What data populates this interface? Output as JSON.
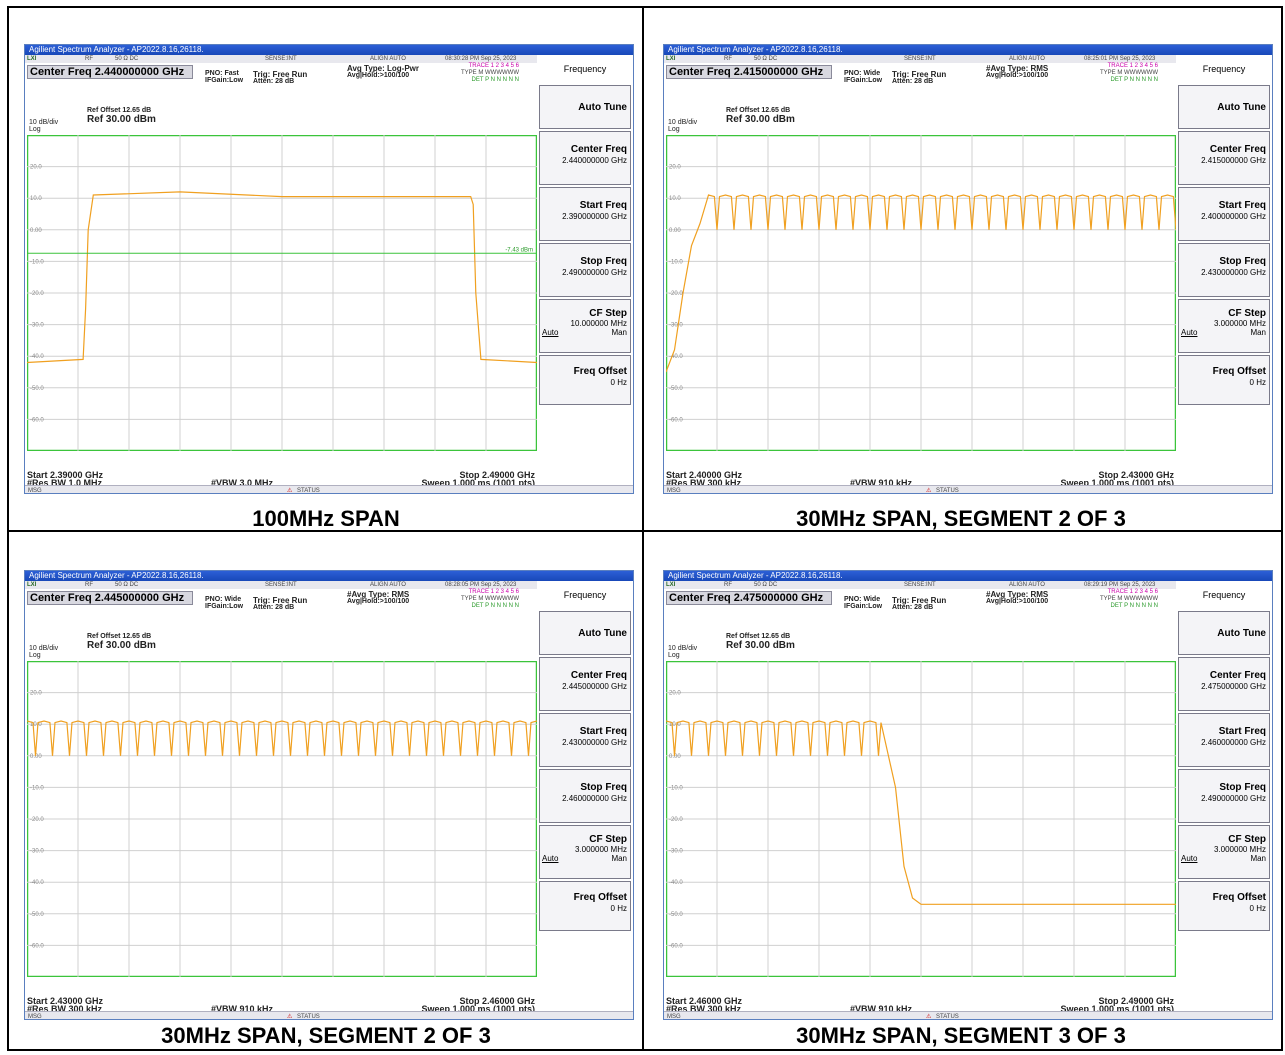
{
  "window_title": "Agilient Spectrum Analyzer - AP2022.8.16,26118.",
  "status_row": {
    "rf": "RF",
    "imp": "50 Ω  DC",
    "sense": "SENSE:INT",
    "align": "ALIGN AUTO"
  },
  "common": {
    "ref_offset": "Ref Offset 12.65 dB",
    "ref_level": "Ref 30.00 dBm",
    "scale": "10 dB/div",
    "log": "Log",
    "trig": "Trig: Free Run",
    "atten": "Atten: 28 dB",
    "ifgain": "IFGain:Low",
    "softkey_header": "Frequency",
    "auto_tune": "Auto Tune",
    "center_freq_label": "Center Freq",
    "start_freq_label": "Start Freq",
    "stop_freq_label": "Stop Freq",
    "cf_step_label": "CF Step",
    "auto": "Auto",
    "man": "Man",
    "freq_offset_label": "Freq Offset",
    "freq_offset_value": "0 Hz",
    "msg": "MSG",
    "status": "STATUS",
    "trace_row": "TRACE 1 2 3 4 5 6",
    "y_ticks": [
      "20.0",
      "10.0",
      "0.00",
      "-10.0",
      "-20.0",
      "-30.0",
      "-40.0",
      "-50.0",
      "-60.0"
    ]
  },
  "panels": [
    {
      "caption": "100MHz SPAN",
      "timestamp": "08:30:28 PM Sep 25, 2023",
      "center": "Center Freq 2.440000000 GHz",
      "pno": "PNO: Fast",
      "avg_type": "Avg Type: Log-Pwr",
      "avg_hold": "Avg|Hold:>100/100",
      "type_row": "TYPE M WWWWWW",
      "det_row": "DET P N N N N N",
      "center_val": "2.440000000 GHz",
      "start_val": "2.390000000 GHz",
      "stop_val": "2.490000000 GHz",
      "cfstep_val": "10.000000 MHz",
      "start": "Start 2.39000 GHz",
      "stop": "Stop 2.49000 GHz",
      "rbw": "#Res BW 1.0 MHz",
      "vbw": "#VBW 3.0 MHz",
      "sweep": "Sweep  1.000 ms (1001 pts)",
      "display_line": "-7.43 dBm"
    },
    {
      "caption": "30MHz SPAN, SEGMENT 2 OF 3",
      "timestamp": "08:25:01 PM Sep 25, 2023",
      "center": "Center Freq 2.415000000 GHz",
      "pno": "PNO: Wide",
      "avg_type": "#Avg Type: RMS",
      "avg_hold": "Avg|Hold:>100/100",
      "type_row": "TYPE M WWWWWW",
      "det_row": "DET P N N N N N",
      "center_val": "2.415000000 GHz",
      "start_val": "2.400000000 GHz",
      "stop_val": "2.430000000 GHz",
      "cfstep_val": "3.000000 MHz",
      "start": "Start 2.40000 GHz",
      "stop": "Stop 2.43000 GHz",
      "rbw": "#Res BW 300 kHz",
      "vbw": "#VBW 910 kHz",
      "sweep": "Sweep  1.000 ms (1001 pts)",
      "display_line": ""
    },
    {
      "caption": "30MHz SPAN, SEGMENT 2 OF 3",
      "timestamp": "08:28:05 PM Sep 25, 2023",
      "center": "Center Freq 2.445000000 GHz",
      "pno": "PNO: Wide",
      "avg_type": "#Avg Type: RMS",
      "avg_hold": "Avg|Hold:>100/100",
      "type_row": "TYPE M WWWWWW",
      "det_row": "DET P N N N N N",
      "center_val": "2.445000000 GHz",
      "start_val": "2.430000000 GHz",
      "stop_val": "2.460000000 GHz",
      "cfstep_val": "3.000000 MHz",
      "start": "Start 2.43000 GHz",
      "stop": "Stop 2.46000 GHz",
      "rbw": "#Res BW 300 kHz",
      "vbw": "#VBW 910 kHz",
      "sweep": "Sweep  1.000 ms (1001 pts)",
      "display_line": ""
    },
    {
      "caption": "30MHz SPAN, SEGMENT 3 OF 3",
      "timestamp": "08:29:19 PM Sep 25, 2023",
      "center": "Center Freq 2.475000000 GHz",
      "pno": "PNO: Wide",
      "avg_type": "#Avg Type: RMS",
      "avg_hold": "Avg|Hold:>100/100",
      "type_row": "TYPE M WWWWWW",
      "det_row": "DET P N N N N N",
      "center_val": "2.475000000 GHz",
      "start_val": "2.460000000 GHz",
      "stop_val": "2.490000000 GHz",
      "cfstep_val": "3.000000 MHz",
      "start": "Start 2.46000 GHz",
      "stop": "Stop 2.49000 GHz",
      "rbw": "#Res BW 300 kHz",
      "vbw": "#VBW 910 kHz",
      "sweep": "Sweep  1.000 ms (1001 pts)",
      "display_line": ""
    }
  ],
  "chart_data": [
    {
      "type": "line",
      "xlabel": "",
      "ylabel": "",
      "xlim": [
        2.39,
        2.49
      ],
      "ylim": [
        -70,
        30
      ],
      "trace_color": "#f0a020",
      "display_line_dbm": -7.43,
      "x": [
        2.39,
        2.401,
        2.4015,
        2.402,
        2.403,
        2.42,
        2.44,
        2.46,
        2.477,
        2.4775,
        2.478,
        2.479,
        2.49
      ],
      "y": [
        -42,
        -41,
        -25,
        0,
        11,
        12,
        10.5,
        10.5,
        10.5,
        8,
        -20,
        -41,
        -42
      ]
    },
    {
      "type": "line",
      "xlabel": "",
      "ylabel": "",
      "xlim": [
        2.4,
        2.43
      ],
      "ylim": [
        -70,
        30
      ],
      "trace_color": "#f0a020",
      "comb": {
        "start_x": 2.4025,
        "channel_spacing_mhz": 1.0,
        "peak_dbm": 11,
        "notch_dbm": 0
      },
      "x": [
        2.4,
        2.4005,
        2.401,
        2.4015,
        2.402,
        2.4025
      ],
      "y": [
        -45,
        -38,
        -20,
        -5,
        2,
        11
      ]
    },
    {
      "type": "line",
      "xlabel": "",
      "ylabel": "",
      "xlim": [
        2.43,
        2.46
      ],
      "ylim": [
        -70,
        30
      ],
      "trace_color": "#f0a020",
      "comb": {
        "start_x": 2.43,
        "channel_spacing_mhz": 1.0,
        "peak_dbm": 11,
        "notch_dbm": 0
      },
      "x": [],
      "y": []
    },
    {
      "type": "line",
      "xlabel": "",
      "ylabel": "",
      "xlim": [
        2.46,
        2.49
      ],
      "ylim": [
        -70,
        30
      ],
      "trace_color": "#f0a020",
      "comb": {
        "start_x": 2.46,
        "end_x": 2.4725,
        "channel_spacing_mhz": 1.0,
        "peak_dbm": 11,
        "notch_dbm": 0
      },
      "x": [
        2.4725,
        2.4735,
        2.474,
        2.4745,
        2.475,
        2.49
      ],
      "y": [
        10,
        -10,
        -35,
        -45,
        -47,
        -47
      ]
    }
  ]
}
